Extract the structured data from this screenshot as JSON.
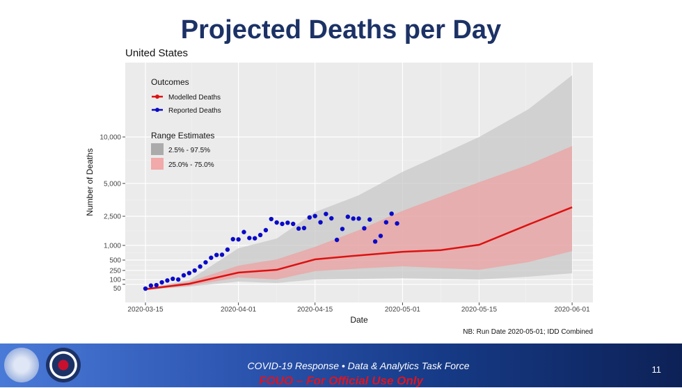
{
  "slide_title": "Projected Deaths per Day",
  "footer": {
    "line1": "COVID-19 Response  •  Data & Analytics Task Force",
    "line2": "FOUO – For Official Use Only",
    "page": "11"
  },
  "chart_data": {
    "type": "line",
    "title": "United States",
    "xlabel": "Date",
    "ylabel": "Number of Deaths",
    "y_scale": "sqrt",
    "ylim": [
      0,
      21600
    ],
    "xlim_days": [
      -3.5,
      81.5
    ],
    "start_date": "2020-03-15",
    "x_ticks": [
      {
        "day": 0,
        "label": "2020-03-15"
      },
      {
        "day": 17,
        "label": "2020-04-01"
      },
      {
        "day": 31,
        "label": "2020-04-15"
      },
      {
        "day": 47,
        "label": "2020-05-01"
      },
      {
        "day": 61,
        "label": "2020-05-15"
      },
      {
        "day": 78,
        "label": "2020-06-01"
      }
    ],
    "y_ticks": [
      {
        "v": 50,
        "label": "50"
      },
      {
        "v": 100,
        "label": "100"
      },
      {
        "v": 250,
        "label": "250"
      },
      {
        "v": 500,
        "label": "500"
      },
      {
        "v": 1000,
        "label": "1,000"
      },
      {
        "v": 2500,
        "label": "2,500"
      },
      {
        "v": 5000,
        "label": "5,000"
      },
      {
        "v": 10000,
        "label": "10,000"
      }
    ],
    "grid": true,
    "legend": {
      "placement": "top-left",
      "outcomes_title": "Outcomes",
      "modelled_label": "Modelled Deaths",
      "reported_label": "Reported Deaths",
      "range_title": "Range Estimates",
      "outer_label": "2.5% - 97.5%",
      "inner_label": "25.0% - 75.0%"
    },
    "colors": {
      "modelled": "#dd1111",
      "reported": "#0a0ac8",
      "outer_band": "#c8c8c8",
      "inner_band": "#f0a0a0",
      "panel": "#ebebeb"
    },
    "model": {
      "days": [
        0,
        8,
        17,
        24,
        31,
        39,
        47,
        54,
        61,
        70,
        78
      ],
      "median": [
        16,
        55,
        209,
        263,
        520,
        640,
        760,
        820,
        1025,
        2000,
        3100
      ],
      "lower_25": [
        14,
        38,
        130,
        102,
        236,
        290,
        340,
        300,
        263,
        443,
        786
      ],
      "upper_75": [
        19,
        77,
        356,
        520,
        942,
        1700,
        2860,
        3900,
        5110,
        6800,
        8890
      ],
      "lower_2_5": [
        12,
        32,
        77,
        62,
        102,
        110,
        120,
        110,
        102,
        140,
        197
      ],
      "upper_97_5": [
        22,
        93,
        890,
        1295,
        2770,
        4000,
        6090,
        7900,
        10000,
        13800,
        19300
      ]
    },
    "reported": {
      "start_day": 0,
      "values": [
        19,
        39,
        43,
        69,
        90,
        111,
        102,
        162,
        201,
        249,
        334,
        438,
        567,
        654,
        662,
        838,
        1262,
        1253,
        1603,
        1316,
        1303,
        1456,
        1700,
        2327,
        2121,
        2041,
        2108,
        2041,
        1783,
        1810,
        2426,
        2514,
        2133,
        2647,
        2370,
        1231,
        1762,
        2469,
        2356,
        2356,
        1798,
        2297,
        1161,
        1413,
        2133,
        2664,
        2068
      ]
    },
    "note": "NB: Run Date 2020-05-01; IDD Combined"
  }
}
